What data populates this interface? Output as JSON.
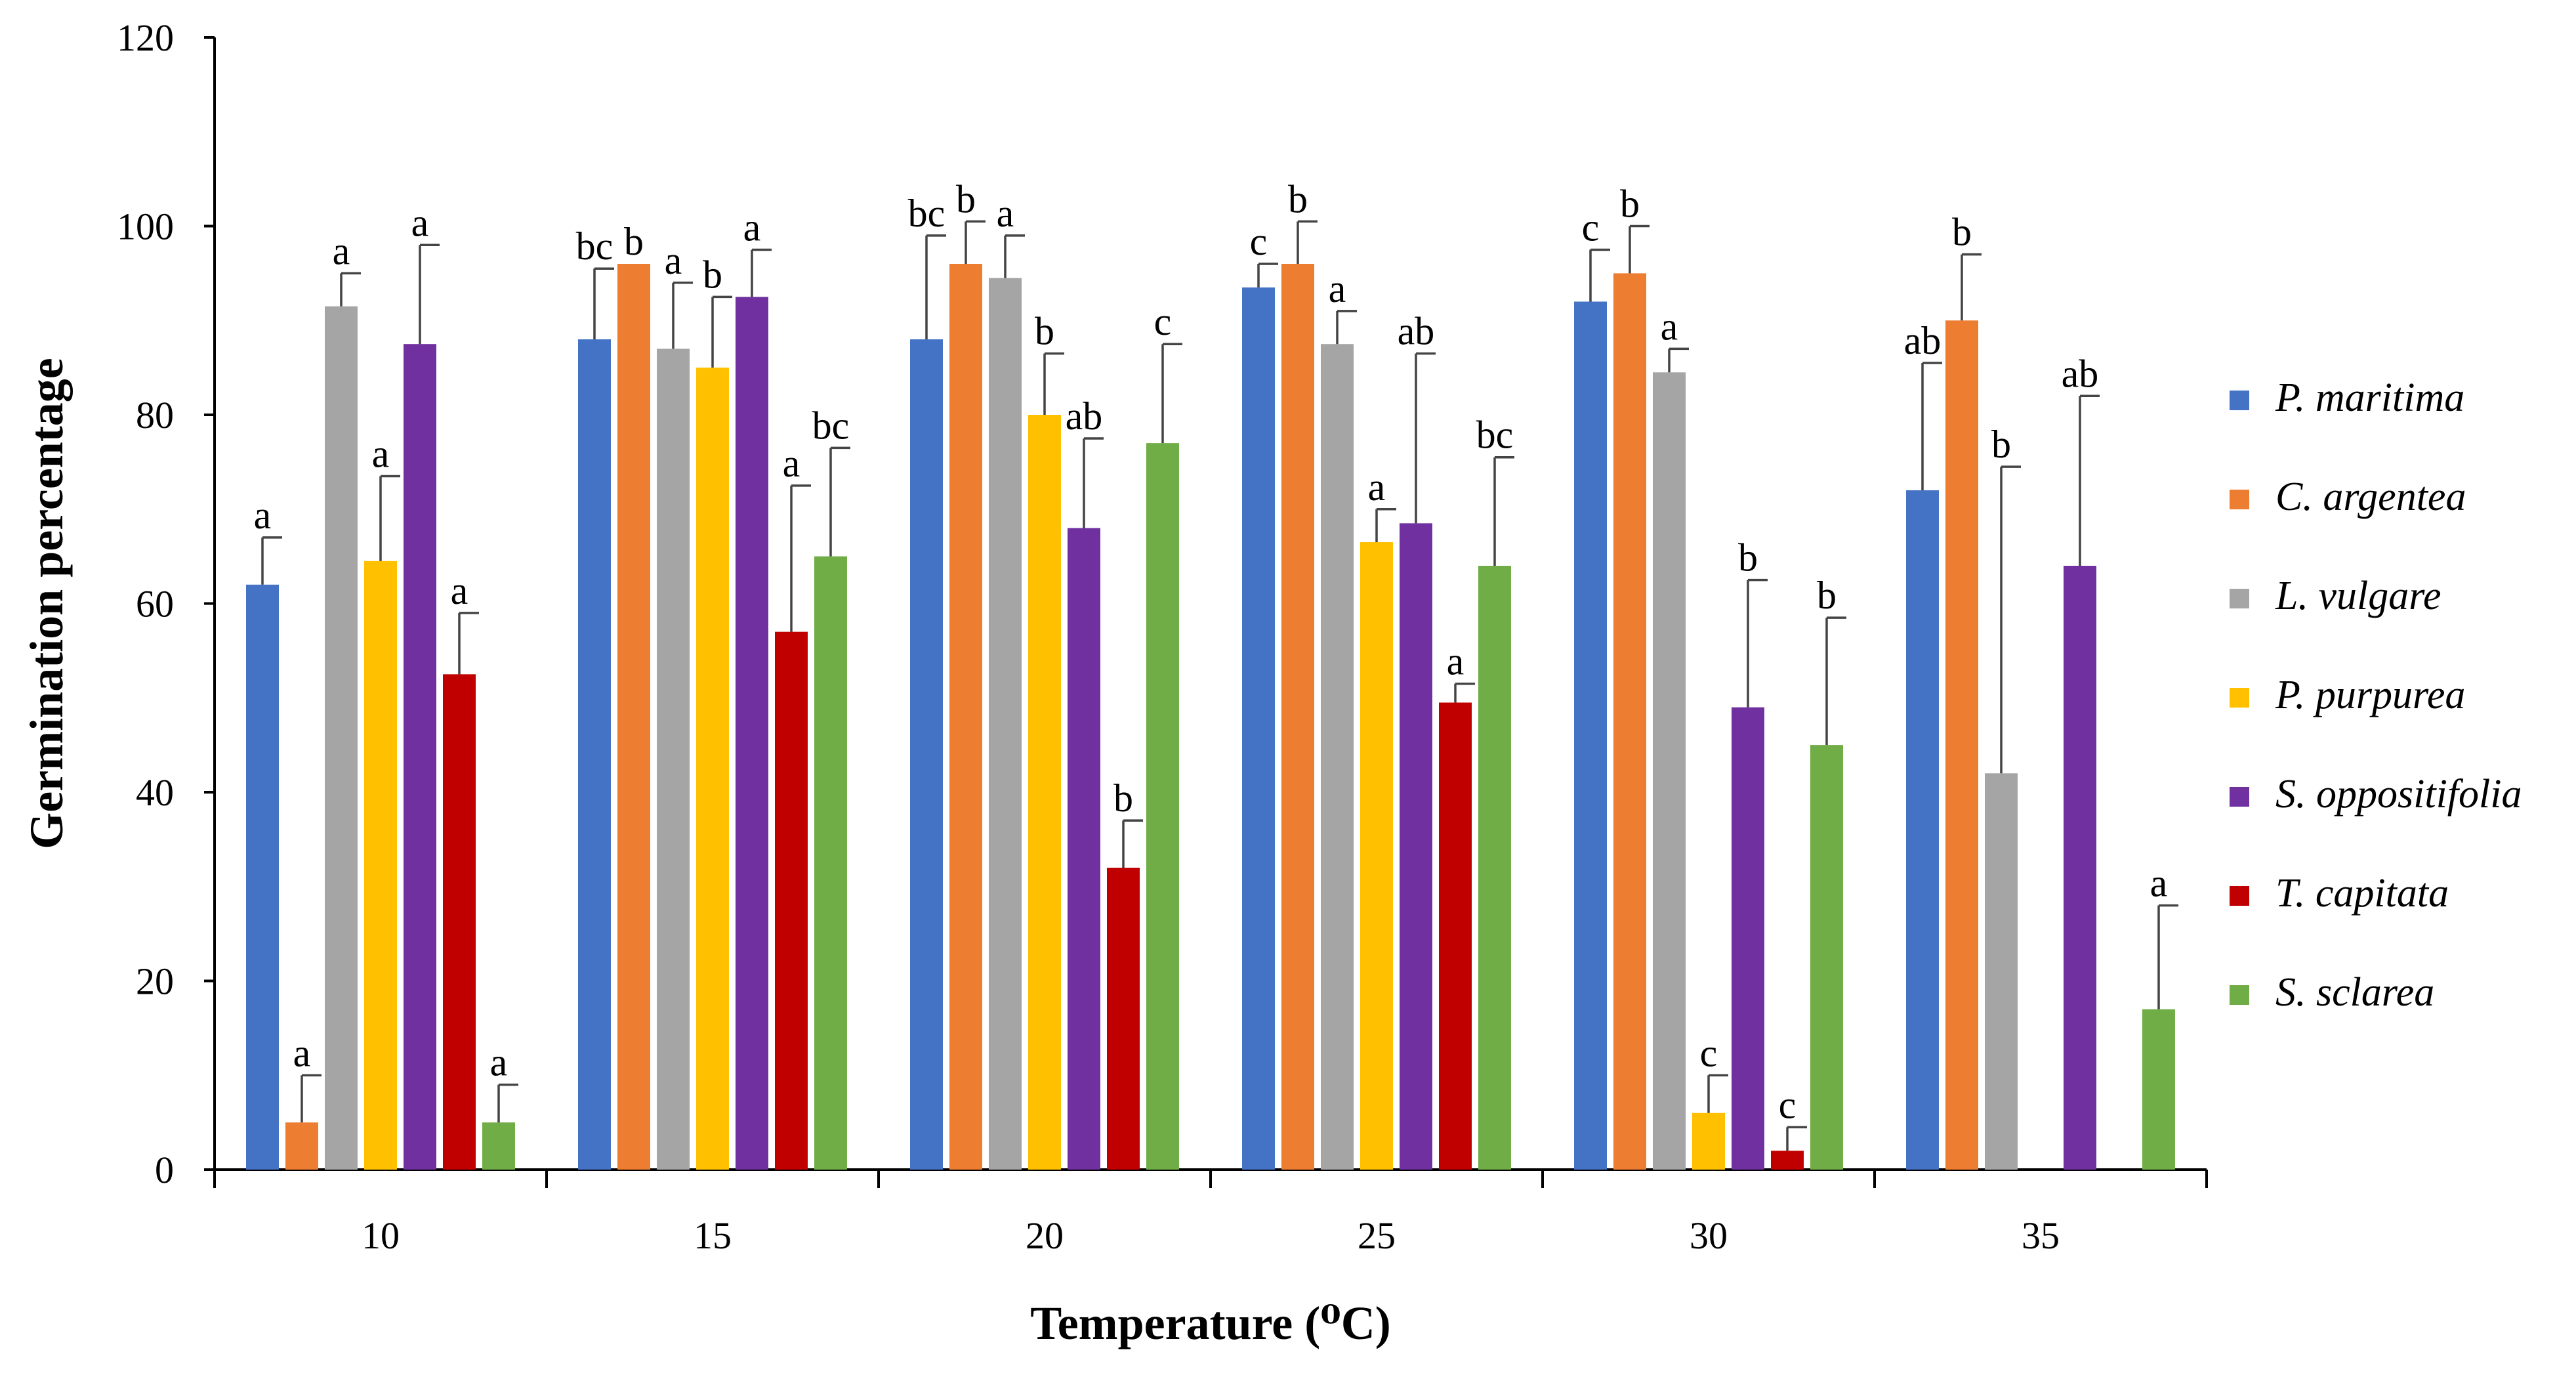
{
  "chart_data": {
    "type": "bar",
    "title": "",
    "xlabel": "Temperature (⁰C)",
    "ylabel": "Germination percentage",
    "ylim": [
      0,
      120
    ],
    "yticks": [
      0,
      20,
      40,
      60,
      80,
      100,
      120
    ],
    "categories": [
      "10",
      "15",
      "20",
      "25",
      "30",
      "35"
    ],
    "legend_position": "right",
    "grid": false,
    "series": [
      {
        "name": "P. maritima",
        "color": "#4472C4",
        "values": [
          62,
          88,
          88,
          93.5,
          92,
          72
        ],
        "errors": [
          5,
          7.5,
          11,
          2.5,
          5.5,
          13.5
        ],
        "labels": [
          "a",
          "bc",
          "bc",
          "c",
          "c",
          "ab"
        ]
      },
      {
        "name": "C. argentea",
        "color": "#ED7D31",
        "values": [
          5,
          96,
          96,
          96,
          95,
          90
        ],
        "errors": [
          5,
          0,
          4.5,
          4.5,
          5,
          7
        ],
        "labels": [
          "a",
          "b",
          "b",
          "b",
          "b",
          "b"
        ]
      },
      {
        "name": "L. vulgare",
        "color": "#A5A5A5",
        "values": [
          91.5,
          87,
          94.5,
          87.5,
          84.5,
          42
        ],
        "errors": [
          3.5,
          7,
          4.5,
          3.5,
          2.5,
          32.5
        ],
        "labels": [
          "a",
          "a",
          "a",
          "a",
          "a",
          "b"
        ]
      },
      {
        "name": "P. purpurea",
        "color": "#FFC000",
        "values": [
          64.5,
          85,
          80,
          66.5,
          6,
          null
        ],
        "errors": [
          9,
          7.5,
          6.5,
          3.5,
          4,
          null
        ],
        "labels": [
          "a",
          "b",
          "b",
          "a",
          "c",
          ""
        ]
      },
      {
        "name": "S. oppositifolia",
        "color": "#7030A0",
        "values": [
          87.5,
          92.5,
          68,
          68.5,
          49,
          64
        ],
        "errors": [
          10.5,
          5,
          9.5,
          18,
          13.5,
          18
        ],
        "labels": [
          "a",
          "a",
          "ab",
          "ab",
          "b",
          "ab"
        ]
      },
      {
        "name": "T. capitata",
        "color": "#C00000",
        "values": [
          52.5,
          57,
          32,
          49.5,
          2,
          null
        ],
        "errors": [
          6.5,
          15.5,
          5,
          2,
          2.5,
          null
        ],
        "labels": [
          "a",
          "a",
          "b",
          "a",
          "c",
          ""
        ]
      },
      {
        "name": "S. sclarea",
        "color": "#70AD47",
        "values": [
          5,
          65,
          77,
          64,
          45,
          17
        ],
        "errors": [
          4,
          11.5,
          10.5,
          11.5,
          13.5,
          11
        ],
        "labels": [
          "a",
          "bc",
          "c",
          "bc",
          "b",
          "a"
        ]
      }
    ]
  }
}
